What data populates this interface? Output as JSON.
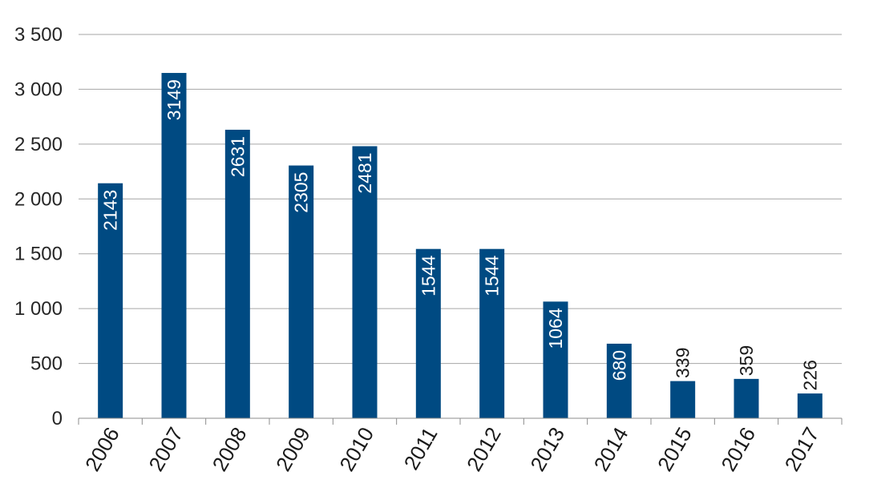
{
  "chart_data": {
    "type": "bar",
    "categories": [
      "2006",
      "2007",
      "2008",
      "2009",
      "2010",
      "2011",
      "2012",
      "2013",
      "2014",
      "2015",
      "2016",
      "2017"
    ],
    "values": [
      2143,
      3149,
      2631,
      2305,
      2481,
      1544,
      1544,
      1064,
      680,
      339,
      359,
      226
    ],
    "data_labels": [
      "2143",
      "3149",
      "2631",
      "2305",
      "2481",
      "1544",
      "1544",
      "1064",
      "680",
      "339",
      "359",
      "226"
    ],
    "label_position": [
      "inside",
      "inside",
      "inside",
      "inside",
      "inside",
      "inside",
      "inside",
      "inside",
      "inside",
      "above",
      "above",
      "above"
    ],
    "yticks": [
      0,
      500,
      1000,
      1500,
      2000,
      2500,
      3000,
      3500
    ],
    "ytick_labels": [
      "0",
      "500",
      "1 000",
      "1 500",
      "2 000",
      "2 500",
      "3 000",
      "3 500"
    ],
    "ylim": [
      0,
      3500
    ],
    "grid": true,
    "bar_color": "#004a82",
    "grid_color": "#a6a6a6"
  }
}
